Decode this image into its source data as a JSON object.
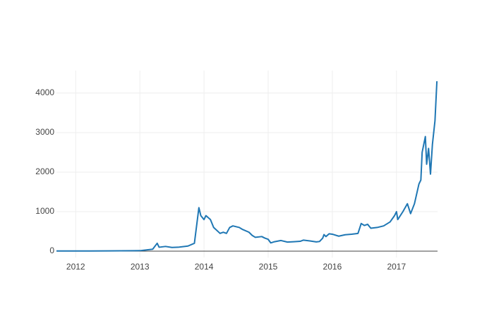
{
  "chart_data": {
    "type": "line",
    "x": [
      2011.7,
      2012.0,
      2012.5,
      2012.9,
      2013.0,
      2013.2,
      2013.27,
      2013.3,
      2013.4,
      2013.5,
      2013.6,
      2013.75,
      2013.85,
      2013.92,
      2013.95,
      2014.0,
      2014.03,
      2014.1,
      2014.15,
      2014.25,
      2014.3,
      2014.35,
      2014.4,
      2014.45,
      2014.5,
      2014.55,
      2014.6,
      2014.7,
      2014.75,
      2014.8,
      2014.9,
      2014.95,
      2015.0,
      2015.04,
      2015.1,
      2015.2,
      2015.3,
      2015.4,
      2015.5,
      2015.55,
      2015.65,
      2015.75,
      2015.8,
      2015.85,
      2015.87,
      2015.9,
      2015.95,
      2016.0,
      2016.1,
      2016.2,
      2016.3,
      2016.4,
      2016.45,
      2016.5,
      2016.55,
      2016.6,
      2016.7,
      2016.8,
      2016.9,
      2016.97,
      2017.0,
      2017.02,
      2017.1,
      2017.17,
      2017.22,
      2017.28,
      2017.35,
      2017.38,
      2017.4,
      2017.45,
      2017.47,
      2017.5,
      2017.53,
      2017.56,
      2017.6,
      2017.63
    ],
    "series": [
      {
        "color": "#1f77b4",
        "values": [
          5,
          5,
          7,
          12,
          13,
          50,
          200,
          100,
          120,
          95,
          100,
          130,
          200,
          1100,
          900,
          800,
          900,
          800,
          600,
          450,
          480,
          450,
          600,
          640,
          620,
          600,
          550,
          480,
          400,
          350,
          370,
          330,
          300,
          210,
          240,
          270,
          230,
          240,
          250,
          280,
          260,
          235,
          245,
          330,
          420,
          370,
          440,
          430,
          380,
          415,
          430,
          450,
          700,
          650,
          680,
          580,
          600,
          640,
          740,
          900,
          1000,
          800,
          1000,
          1200,
          950,
          1200,
          1700,
          1800,
          2500,
          2900,
          2200,
          2600,
          1950,
          2700,
          3300,
          4300
        ]
      }
    ],
    "xlim": [
      2011.7,
      2017.64
    ],
    "xticks": [
      2012,
      2013,
      2014,
      2015,
      2016,
      2017
    ],
    "ylim": [
      -160,
      4570
    ],
    "yticks": [
      0,
      1000,
      2000,
      3000,
      4000
    ],
    "grid": true
  }
}
